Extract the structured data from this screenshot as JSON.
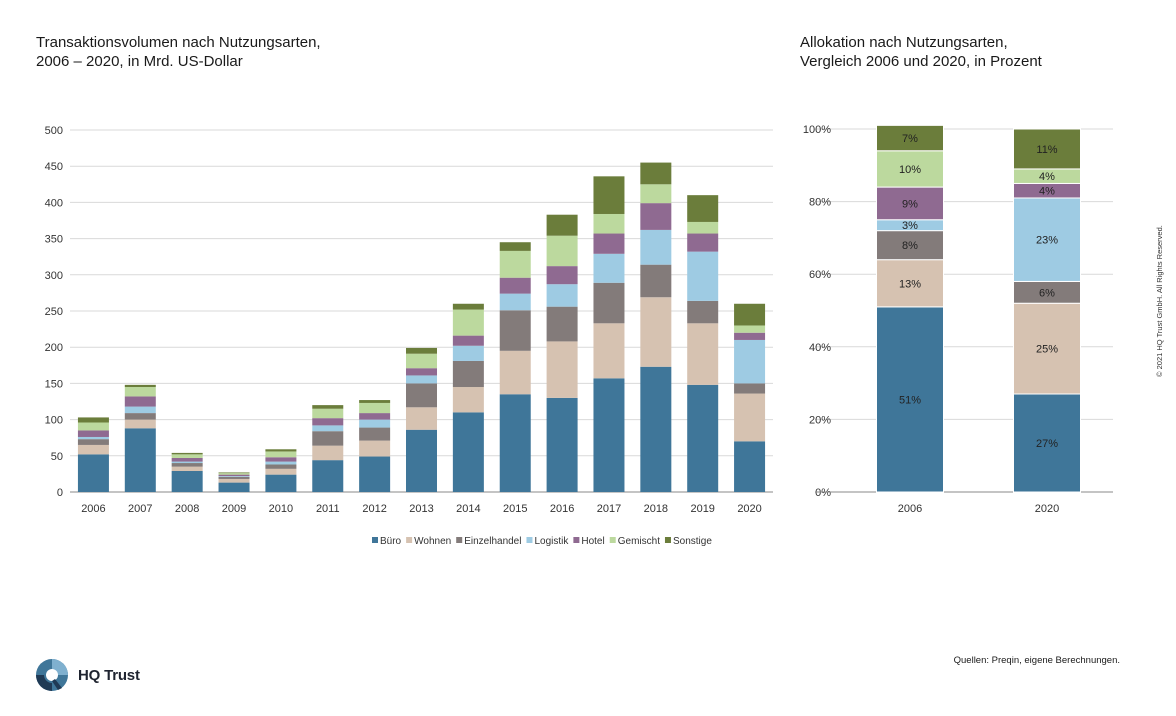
{
  "titles": {
    "left_line1": "Transaktionsvolumen nach Nutzungsarten,",
    "left_line2": "2006 – 2020, in Mrd. US-Dollar",
    "right_line1": "Allokation nach Nutzungsarten,",
    "right_line2": "Vergleich 2006 und 2020, in Prozent"
  },
  "source": "Quellen: Preqin, eigene Berechnungen.",
  "copyright": "© 2021 HQ Trust GmbH. All Rights Reserved.",
  "logo_text": "HQ Trust",
  "colors": {
    "Büro": "#3f7699",
    "Wohnen": "#d6c2b1",
    "Einzelhandel": "#837b7a",
    "Logistik": "#9ecbe3",
    "Hotel": "#8f6a91",
    "Gemischt": "#bcd99e",
    "Sonstige": "#6b7d3b"
  },
  "chart_data": [
    {
      "type": "bar",
      "stacked": true,
      "categories": [
        "2006",
        "2007",
        "2008",
        "2009",
        "2010",
        "2011",
        "2012",
        "2013",
        "2014",
        "2015",
        "2016",
        "2017",
        "2018",
        "2019",
        "2020"
      ],
      "ylim": [
        0,
        500
      ],
      "yticks": [
        0,
        50,
        100,
        150,
        200,
        250,
        300,
        350,
        400,
        450,
        500
      ],
      "grid": true,
      "legend": "bottom",
      "series": [
        {
          "name": "Büro",
          "values": [
            52,
            88,
            29,
            13,
            24,
            44,
            49,
            86,
            110,
            135,
            130,
            157,
            173,
            148,
            70
          ]
        },
        {
          "name": "Wohnen",
          "values": [
            13,
            12,
            6,
            5,
            8,
            20,
            22,
            31,
            35,
            60,
            78,
            76,
            96,
            85,
            66
          ]
        },
        {
          "name": "Einzelhandel",
          "values": [
            8,
            9,
            5,
            3,
            6,
            20,
            18,
            33,
            36,
            56,
            48,
            56,
            45,
            31,
            14
          ]
        },
        {
          "name": "Logistik",
          "values": [
            3,
            9,
            2,
            1,
            4,
            8,
            11,
            11,
            21,
            23,
            31,
            40,
            48,
            68,
            60
          ]
        },
        {
          "name": "Hotel",
          "values": [
            9,
            14,
            5,
            2,
            6,
            10,
            9,
            10,
            14,
            22,
            25,
            28,
            37,
            25,
            10
          ]
        },
        {
          "name": "Gemischt",
          "values": [
            11,
            13,
            5,
            2,
            8,
            13,
            14,
            20,
            36,
            37,
            42,
            27,
            26,
            16,
            10
          ]
        },
        {
          "name": "Sonstige",
          "values": [
            7,
            3,
            2,
            1,
            3,
            5,
            4,
            8,
            8,
            12,
            29,
            52,
            30,
            37,
            30
          ]
        }
      ]
    },
    {
      "type": "bar",
      "stacked": true,
      "categories": [
        "2006",
        "2020"
      ],
      "ylim": [
        0,
        100
      ],
      "yticks": [
        "0%",
        "20%",
        "40%",
        "60%",
        "80%",
        "100%"
      ],
      "grid": true,
      "series": [
        {
          "name": "Büro",
          "values": [
            51,
            27
          ],
          "labels": [
            "51%",
            "27%"
          ]
        },
        {
          "name": "Wohnen",
          "values": [
            13,
            25
          ],
          "labels": [
            "13%",
            "25%"
          ]
        },
        {
          "name": "Einzelhandel",
          "values": [
            8,
            6
          ],
          "labels": [
            "8%",
            "6%"
          ]
        },
        {
          "name": "Logistik",
          "values": [
            3,
            23
          ],
          "labels": [
            "3%",
            "23%"
          ]
        },
        {
          "name": "Hotel",
          "values": [
            9,
            4
          ],
          "labels": [
            "9%",
            "4%"
          ]
        },
        {
          "name": "Gemischt",
          "values": [
            10,
            4
          ],
          "labels": [
            "10%",
            "4%"
          ]
        },
        {
          "name": "Sonstige",
          "values": [
            7,
            11
          ],
          "labels": [
            "7%",
            "11%"
          ]
        }
      ]
    }
  ]
}
